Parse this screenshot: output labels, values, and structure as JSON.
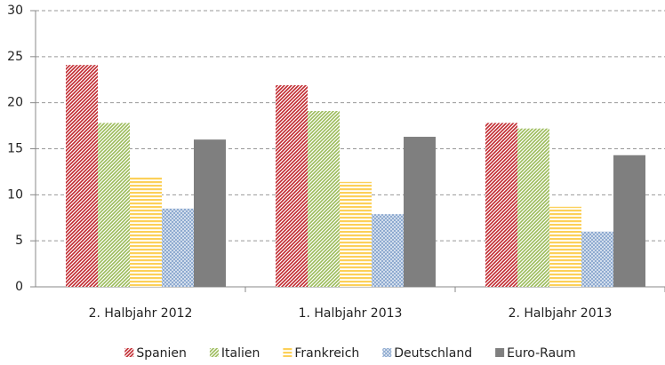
{
  "chart_data": {
    "type": "bar",
    "categories": [
      "2. Halbjahr 2012",
      "1. Halbjahr 2013",
      "2. Halbjahr 2013"
    ],
    "series": [
      {
        "name": "Spanien",
        "color": "#c0272d",
        "pattern": "diagonal",
        "values": [
          24.1,
          21.9,
          17.8
        ]
      },
      {
        "name": "Italien",
        "color": "#9bbb59",
        "pattern": "diagonal",
        "values": [
          17.8,
          19.1,
          17.2
        ]
      },
      {
        "name": "Frankreich",
        "color": "#fcd059",
        "pattern": "horizontal",
        "values": [
          11.9,
          11.4,
          8.7
        ]
      },
      {
        "name": "Deutschland",
        "color": "#8eaad0",
        "pattern": "crosshatch",
        "values": [
          8.5,
          7.9,
          6.0
        ]
      },
      {
        "name": "Euro-Raum",
        "color": "#7f7f7f",
        "pattern": "solid",
        "values": [
          16.0,
          16.3,
          14.3
        ]
      }
    ],
    "ylim": [
      0,
      30
    ],
    "yticks": [
      0,
      5,
      10,
      15,
      20,
      25,
      30
    ],
    "grid": true,
    "legend": "bottom"
  }
}
